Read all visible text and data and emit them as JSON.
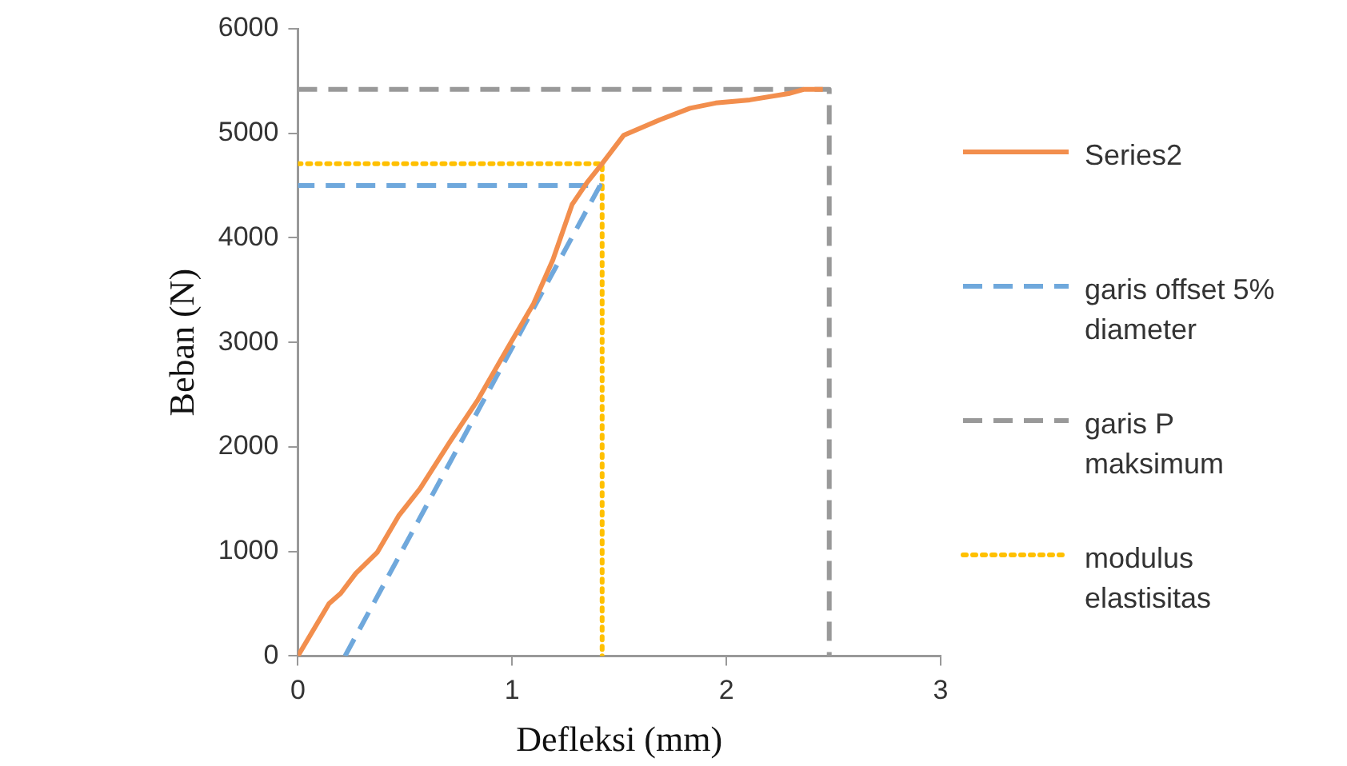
{
  "chart_data": {
    "type": "line",
    "xlabel": "Defleksi (mm)",
    "ylabel": "Beban (N)",
    "xlim": [
      0,
      3
    ],
    "xticks": [
      0,
      1,
      2,
      3
    ],
    "ylim": [
      0,
      6000
    ],
    "yticks": [
      0,
      1000,
      2000,
      3000,
      4000,
      5000,
      6000
    ],
    "grid": false,
    "legend": "right",
    "marker": "none",
    "series": [
      {
        "name": "Series2",
        "color": "#f28e4d",
        "line_style": "solid",
        "x": [
          0,
          0.145,
          0.2,
          0.27,
          0.37,
          0.47,
          0.57,
          0.71,
          0.84,
          0.98,
          1.1,
          1.19,
          1.28,
          1.35,
          1.42,
          1.52,
          1.69,
          1.83,
          1.95,
          2.11,
          2.29,
          2.36,
          2.45
        ],
        "values": [
          0,
          500,
          600,
          790,
          990,
          1340,
          1600,
          2050,
          2450,
          2950,
          3370,
          3790,
          4320,
          4530,
          4710,
          4980,
          5130,
          5240,
          5290,
          5320,
          5380,
          5420,
          5420
        ]
      },
      {
        "name": "garis offset 5% diameter",
        "color": "#6fa8dc",
        "line_style": "dashed",
        "x": [
          0.22,
          1.41,
          0
        ],
        "values": [
          0,
          4500,
          4500
        ]
      },
      {
        "name": "garis P maksimum",
        "color": "#999999",
        "line_style": "dashed",
        "x": [
          0,
          2.48,
          2.48
        ],
        "values": [
          5420,
          5420,
          0
        ]
      },
      {
        "name": "modulus elastisitas",
        "color": "#ffc000",
        "line_style": "dotted",
        "x": [
          0,
          1.42,
          1.42
        ],
        "values": [
          4710,
          4710,
          0
        ]
      }
    ]
  }
}
